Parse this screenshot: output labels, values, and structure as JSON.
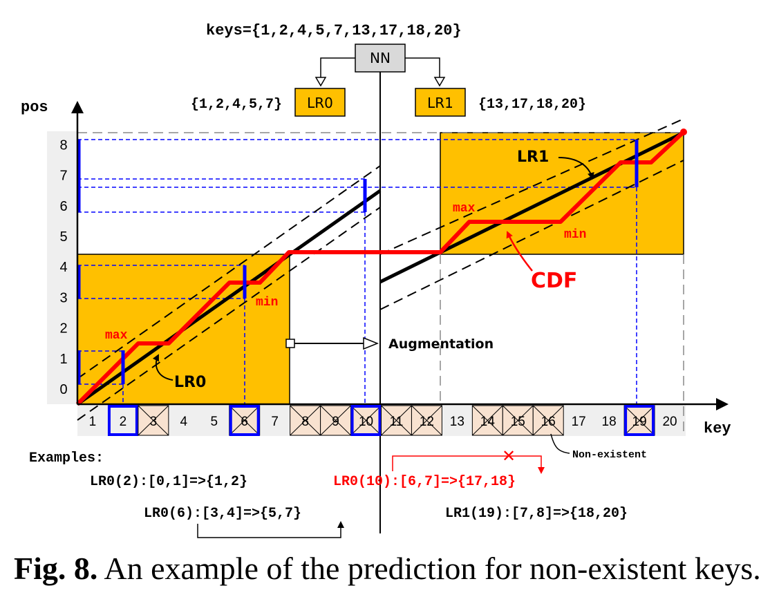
{
  "header": {
    "keys_set": "keys={1,2,4,5,7,13,17,18,20}"
  },
  "models": {
    "nn": "NN",
    "lr0": {
      "label": "LR0",
      "keys": "{1,2,4,5,7}"
    },
    "lr1": {
      "label": "LR1",
      "keys": "{13,17,18,20}"
    }
  },
  "axes": {
    "y_label": "pos",
    "x_label": "key",
    "y_ticks": [
      "0",
      "1",
      "2",
      "3",
      "4",
      "5",
      "6",
      "7",
      "8"
    ],
    "x_ticks": [
      "1",
      "2",
      "3",
      "4",
      "5",
      "6",
      "7",
      "8",
      "9",
      "10",
      "11",
      "12",
      "13",
      "14",
      "15",
      "16",
      "17",
      "18",
      "19",
      "20"
    ],
    "existent_keys": [
      1,
      2,
      4,
      5,
      7,
      13,
      17,
      18,
      20
    ],
    "queried_keys": [
      2,
      6,
      10,
      19
    ]
  },
  "chart_labels": {
    "lr0_line": "LR0",
    "lr1_line": "LR1",
    "cdf": "CDF",
    "max_left": "max",
    "min_left": "min",
    "max_right": "max",
    "min_right": "min",
    "augmentation": "Augmentation",
    "non_existent": "Non-existent"
  },
  "examples": {
    "heading": "Examples:",
    "ex1": "LR0(2):[0,1]=>{1,2}",
    "ex2": "LR0(10):[6,7]=>{17,18}",
    "ex3": "LR0(6):[3,4]=>{5,7}",
    "ex4": "LR1(19):[7,8]=>{18,20}",
    "cross": "✕"
  },
  "caption": {
    "label": "Fig. 8.",
    "text": " An example of the prediction for non-existent keys."
  },
  "colors": {
    "gold": "#FFC000",
    "cdf_red": "#FF0000",
    "blue": "#0000FF",
    "crossed_cell": "#F8E2D0",
    "axis_strip": "#EFEFEF"
  }
}
